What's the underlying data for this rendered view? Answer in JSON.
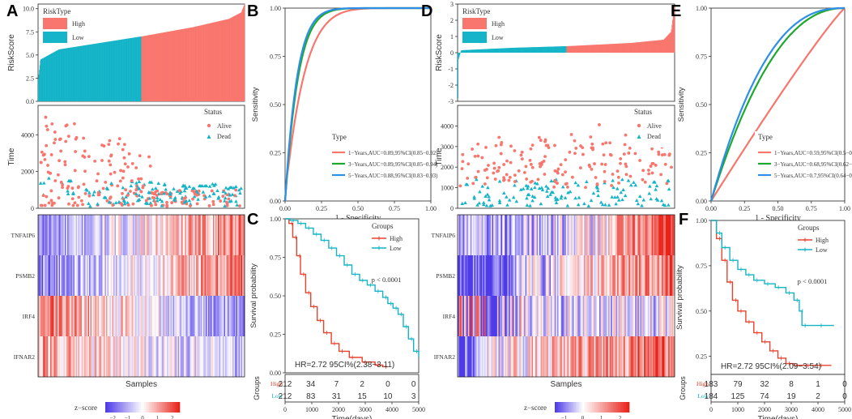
{
  "colors": {
    "high": "#F8766D",
    "low": "#00BFC4",
    "red": "#E8432E",
    "cyan": "#15B4C8",
    "green": "#1FA82E",
    "blue": "#2E8FE8",
    "heat_low": "#4F3BE8",
    "heat_mid": "#FFFFFF",
    "heat_high": "#E8231A"
  },
  "chart_data": [
    {
      "id": "A",
      "panel_label": "A",
      "type": "bar",
      "title": "",
      "xlabel": "",
      "ylabel": "RiskScore",
      "ylim": [
        0,
        10.5
      ],
      "yticks": [
        "0.0",
        "2.5",
        "5.0",
        "7.5",
        "10.0"
      ],
      "legend": {
        "title": "RiskType",
        "entries": [
          "High",
          "Low"
        ],
        "placement": "top-left"
      },
      "n_samples": 424,
      "low_count": 212,
      "low_profile": [
        [
          0,
          2.4
        ],
        [
          0.02,
          4.5
        ],
        [
          0.2,
          5.6
        ],
        [
          0.6,
          6.3
        ],
        [
          1,
          7.0
        ]
      ],
      "high_profile": [
        [
          0,
          7.0
        ],
        [
          0.5,
          8.0
        ],
        [
          0.85,
          8.9
        ],
        [
          0.97,
          9.6
        ],
        [
          1,
          10.5
        ]
      ]
    },
    {
      "id": "A_time",
      "type": "scatter",
      "xlabel": "",
      "ylabel": "Time",
      "ylim": [
        0,
        5600
      ],
      "yticks": [
        "0",
        "2000",
        "4000"
      ],
      "legend": {
        "title": "Status",
        "entries": [
          "Alive",
          "Dead"
        ],
        "placement": "top-right"
      },
      "series": [
        {
          "name": "Alive",
          "marker": "circle"
        },
        {
          "name": "Dead",
          "marker": "triangle"
        }
      ]
    },
    {
      "id": "A_heat",
      "type": "heatmap",
      "xlabel": "Samples",
      "genes": [
        "TNFAIP6",
        "PSMB2",
        "IRF4",
        "IFNAR2"
      ],
      "gene_trend": [
        1,
        1,
        -1,
        -0.6
      ],
      "colorbar": {
        "title": "z−score",
        "ticks": [
          "−2",
          "−1",
          "0",
          "1",
          "2"
        ],
        "range": [
          -2.5,
          2.5
        ]
      }
    },
    {
      "id": "B",
      "panel_label": "B",
      "type": "line",
      "xlabel": "1 - Specificity",
      "ylabel": "Sensitivity",
      "xlim": [
        0,
        1
      ],
      "ylim": [
        0,
        1
      ],
      "xticks": [
        "0.00",
        "0.25",
        "0.50",
        "0.75",
        "1.00"
      ],
      "yticks": [
        "0.00",
        "0.25",
        "0.50",
        "0.75",
        "1.00"
      ],
      "legend": {
        "title": "Type",
        "placement": "bottom-right"
      },
      "series": [
        {
          "name": "1−Years,AUC=0.89,95%CI(0.85−0.92)",
          "color": "#F8766D",
          "k": 9
        },
        {
          "name": "3−Years,AUC=0.89,95%CI(0.85−0.94)",
          "color": "#1FA82E",
          "k": 11
        },
        {
          "name": "5−Years,AUC=0.88,95%CI(0.83−0.93)",
          "color": "#2E8FE8",
          "k": 12
        }
      ]
    },
    {
      "id": "C",
      "panel_label": "C",
      "type": "line",
      "xlabel": "Time(days)",
      "ylabel": "Survival probability",
      "xlim": [
        0,
        5200
      ],
      "ylim": [
        0,
        1
      ],
      "xticks": [
        "0",
        "1000",
        "2000",
        "3000",
        "4000",
        "5000"
      ],
      "yticks": [
        "0.00",
        "0.25",
        "0.50",
        "0.75",
        "1.00"
      ],
      "legend": {
        "title": "Groups",
        "entries": [
          "High",
          "Low"
        ],
        "placement": "top-right"
      },
      "pvalue": "p < 0.0001",
      "hr": "HR=2.72 95CI%(2.38−3.11)",
      "series": [
        {
          "name": "High",
          "points": [
            [
              0,
              1
            ],
            [
              150,
              0.97
            ],
            [
              300,
              0.88
            ],
            [
              450,
              0.76
            ],
            [
              600,
              0.64
            ],
            [
              800,
              0.52
            ],
            [
              1000,
              0.43
            ],
            [
              1250,
              0.34
            ],
            [
              1500,
              0.26
            ],
            [
              1800,
              0.19
            ],
            [
              2100,
              0.14
            ],
            [
              2500,
              0.1
            ],
            [
              3000,
              0.07
            ],
            [
              3500,
              0.05
            ],
            [
              3800,
              0.04
            ],
            [
              4000,
              0.04
            ]
          ]
        },
        {
          "name": "Low",
          "points": [
            [
              0,
              1
            ],
            [
              200,
              0.99
            ],
            [
              500,
              0.97
            ],
            [
              800,
              0.94
            ],
            [
              1100,
              0.9
            ],
            [
              1400,
              0.86
            ],
            [
              1700,
              0.81
            ],
            [
              2000,
              0.76
            ],
            [
              2300,
              0.7
            ],
            [
              2600,
              0.64
            ],
            [
              2900,
              0.6
            ],
            [
              3200,
              0.57
            ],
            [
              3500,
              0.53
            ],
            [
              3800,
              0.49
            ],
            [
              4000,
              0.45
            ],
            [
              4200,
              0.42
            ],
            [
              4400,
              0.38
            ],
            [
              4600,
              0.3
            ],
            [
              4800,
              0.22
            ],
            [
              5000,
              0.14
            ],
            [
              5200,
              0.1
            ]
          ]
        }
      ],
      "risk_table": {
        "ylabel": "Groups",
        "rows": [
          {
            "name": "High",
            "values": [
              "212",
              "34",
              "7",
              "2",
              "0",
              "0"
            ]
          },
          {
            "name": "Low",
            "values": [
              "212",
              "83",
              "31",
              "15",
              "10",
              "3"
            ]
          }
        ]
      }
    },
    {
      "id": "D",
      "panel_label": "D",
      "type": "bar",
      "title": "",
      "xlabel": "",
      "ylabel": "RiskScore",
      "ylim": [
        -3,
        3
      ],
      "yticks": [
        "-3",
        "-2",
        "-1",
        "0",
        "1",
        "2",
        "3"
      ],
      "legend": {
        "title": "RiskType",
        "entries": [
          "High",
          "Low"
        ],
        "placement": "top-left"
      },
      "n_samples": 367,
      "low_count": 184,
      "low_profile": [
        [
          0,
          -2.8
        ],
        [
          0.005,
          -0.4
        ],
        [
          0.03,
          0.15
        ],
        [
          0.5,
          0.3
        ],
        [
          1,
          0.4
        ]
      ],
      "high_profile": [
        [
          0,
          0.4
        ],
        [
          0.6,
          0.6
        ],
        [
          0.9,
          0.8
        ],
        [
          0.97,
          1.3
        ],
        [
          1,
          2.9
        ]
      ]
    },
    {
      "id": "D_time",
      "type": "scatter",
      "xlabel": "",
      "ylabel": "Time",
      "ylim": [
        0,
        5000
      ],
      "yticks": [
        "0",
        "1000",
        "2000",
        "3000",
        "4000"
      ],
      "legend": {
        "title": "Status",
        "entries": [
          "Alive",
          "Dead"
        ],
        "placement": "top-right"
      },
      "series": [
        {
          "name": "Alive",
          "marker": "circle"
        },
        {
          "name": "Dead",
          "marker": "triangle"
        }
      ]
    },
    {
      "id": "D_heat",
      "type": "heatmap",
      "xlabel": "Samples",
      "genes": [
        "TNFAIP6",
        "PSMB2",
        "IRF4",
        "IFNAR2"
      ],
      "gene_trend": [
        1,
        1,
        -0.4,
        0.8
      ],
      "colorbar": {
        "title": "z−score",
        "ticks": [
          "−1",
          "0",
          "1",
          "2"
        ],
        "range": [
          -1.5,
          2.5
        ]
      }
    },
    {
      "id": "E",
      "panel_label": "E",
      "type": "line",
      "xlabel": "1 - Specificity",
      "ylabel": "Sensitivity",
      "xlim": [
        0,
        1
      ],
      "ylim": [
        0,
        1
      ],
      "xticks": [
        "0.00",
        "0.25",
        "0.50",
        "0.75",
        "1.00"
      ],
      "yticks": [
        "0.00",
        "0.25",
        "0.50",
        "0.75",
        "1.00"
      ],
      "legend": {
        "title": "Type",
        "placement": "bottom-right"
      },
      "series": [
        {
          "name": "1−Years,AUC=0.59,95%CI(0.5−0.68)",
          "color": "#F8766D",
          "k": 1.1
        },
        {
          "name": "3−Years,AUC=0.68,95%CI(0.62−0.74)",
          "color": "#1FA82E",
          "k": 2.2
        },
        {
          "name": "5−Years,AUC=0.7,95%CI(0.64−0.76)",
          "color": "#2E8FE8",
          "k": 2.5
        }
      ]
    },
    {
      "id": "F",
      "panel_label": "F",
      "type": "line",
      "xlabel": "Time(days)",
      "ylabel": "Survival probability",
      "xlim": [
        0,
        5000
      ],
      "ylim": [
        0,
        1
      ],
      "xticks": [
        "0",
        "1000",
        "2000",
        "3000",
        "4000",
        "5000"
      ],
      "yticks": [
        "0.25",
        "0.50",
        "0.75",
        "1.00"
      ],
      "legend": {
        "title": "Groups",
        "entries": [
          "High",
          "Low"
        ],
        "placement": "top-right"
      },
      "pvalue": "p < 0.0001",
      "hr": "HR=2.72 95CI%(2.09−3.54)",
      "series": [
        {
          "name": "High",
          "points": [
            [
              0,
              1
            ],
            [
              200,
              0.9
            ],
            [
              400,
              0.78
            ],
            [
              600,
              0.66
            ],
            [
              800,
              0.56
            ],
            [
              1000,
              0.5
            ],
            [
              1300,
              0.44
            ],
            [
              1600,
              0.38
            ],
            [
              1900,
              0.33
            ],
            [
              2200,
              0.28
            ],
            [
              2500,
              0.24
            ],
            [
              2800,
              0.21
            ],
            [
              3100,
              0.2
            ],
            [
              3500,
              0.2
            ],
            [
              4000,
              0.2
            ],
            [
              4500,
              0.2
            ]
          ]
        },
        {
          "name": "Low",
          "points": [
            [
              0,
              1
            ],
            [
              200,
              0.93
            ],
            [
              400,
              0.85
            ],
            [
              700,
              0.78
            ],
            [
              1000,
              0.73
            ],
            [
              1300,
              0.7
            ],
            [
              1600,
              0.67
            ],
            [
              2000,
              0.65
            ],
            [
              2400,
              0.63
            ],
            [
              2800,
              0.6
            ],
            [
              3100,
              0.56
            ],
            [
              3300,
              0.5
            ],
            [
              3400,
              0.42
            ],
            [
              4000,
              0.42
            ],
            [
              4600,
              0.42
            ]
          ]
        }
      ],
      "risk_table": {
        "ylabel": "Groups",
        "rows": [
          {
            "name": "High",
            "values": [
              "183",
              "79",
              "32",
              "8",
              "1",
              "0"
            ]
          },
          {
            "name": "Low",
            "values": [
              "184",
              "125",
              "74",
              "19",
              "2",
              "0"
            ]
          }
        ]
      }
    }
  ]
}
